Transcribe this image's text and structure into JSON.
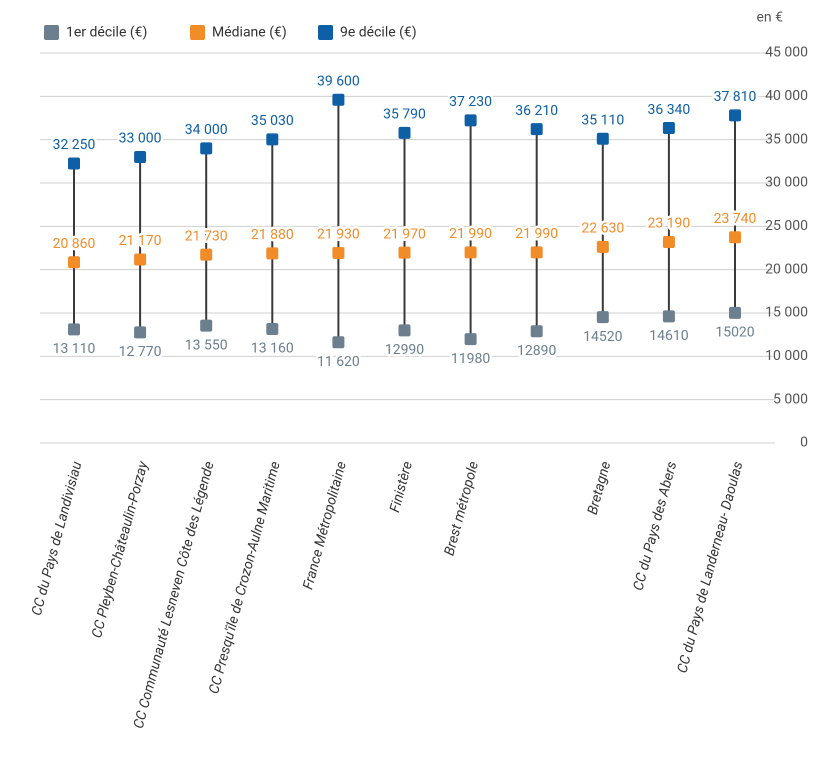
{
  "chart_data": {
    "type": "dotrange",
    "unit_label": "en €",
    "categories": [
      "CC du Pays de Landivisiau",
      "CC Pleyben-Châteaulin-Porzay",
      "CC Communauté Lesneven Côte des Légende",
      "CC Presqu'île de Crozon-Aulne Maritime",
      "France Métropolitaine",
      "Finistère",
      "Brest métropole",
      null,
      "Bretagne",
      "CC du Pays des Abers",
      "CC du Pays de Landerneau- Daoulas"
    ],
    "series": [
      {
        "name": "1er décile (€)",
        "color": "#6b7f8e",
        "values": [
          13110,
          12770,
          13550,
          13160,
          11620,
          12990,
          11980,
          12890,
          14520,
          14610,
          15020
        ],
        "value_labels": [
          "13 110",
          "12 770",
          "13 550",
          "13 160",
          "11 620",
          "12990",
          "11980",
          "12890",
          "14520",
          "14610",
          "15020"
        ]
      },
      {
        "name": "Médiane (€)",
        "color": "#f28c28",
        "values": [
          20860,
          21170,
          21730,
          21880,
          21930,
          21970,
          21990,
          21990,
          22630,
          23190,
          23740
        ],
        "value_labels": [
          "20 860",
          "21 170",
          "21 730",
          "21 880",
          "21 930",
          "21 970",
          "21 990",
          "21 990",
          "22 630",
          "23 190",
          "23 740"
        ]
      },
      {
        "name": "9e décile (€)",
        "color": "#0e5fa5",
        "values": [
          32250,
          33000,
          34000,
          35030,
          39600,
          35790,
          37230,
          36210,
          35110,
          36340,
          37810
        ],
        "value_labels": [
          "32 250",
          "33 000",
          "34 000",
          "35 030",
          "39 600",
          "35 790",
          "37 230",
          "36 210",
          "35 110",
          "36 340",
          "37 810"
        ]
      }
    ],
    "ylim": [
      0,
      45000
    ],
    "yticks": [
      0,
      {
        "value": 5000,
        "label": "5 000"
      },
      {
        "value": 10000,
        "label": "10 000"
      },
      {
        "value": 15000,
        "label": "15 000"
      },
      {
        "value": 20000,
        "label": "20 000"
      },
      {
        "value": 25000,
        "label": "25 000"
      },
      {
        "value": 30000,
        "label": "30 000"
      },
      {
        "value": 35000,
        "label": "35 000"
      },
      {
        "value": 40000,
        "label": "40 000"
      },
      {
        "value": 45000,
        "label": "45 000"
      }
    ],
    "grid": true
  }
}
